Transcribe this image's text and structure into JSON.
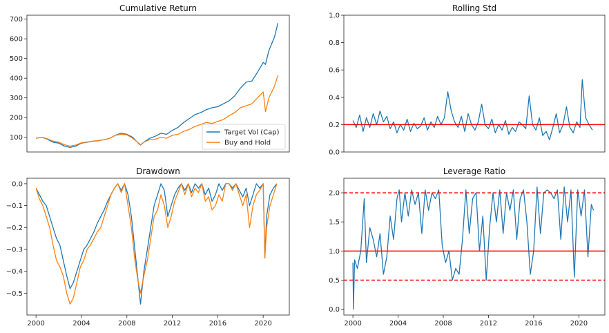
{
  "colors": {
    "target_vol": "#1f77b4",
    "buy_hold": "#ff7f0e",
    "reference": "#ff0000"
  },
  "chart_data": [
    {
      "id": "cumulative",
      "type": "line",
      "title": "Cumulative Return",
      "xlabel": "",
      "ylabel": "",
      "xlim": [
        1999.2,
        2022.3
      ],
      "ylim": [
        25,
        720
      ],
      "yticks": [
        100,
        200,
        300,
        400,
        500,
        600,
        700
      ],
      "show_xticks": false,
      "grid": false,
      "legend": "lower-right",
      "series": [
        {
          "name": "Target Vol (Cap)",
          "color": "#1f77b4",
          "x": [
            2000.0,
            2000.5,
            2001.0,
            2001.5,
            2002.0,
            2002.5,
            2003.0,
            2003.5,
            2004.0,
            2004.5,
            2005.0,
            2005.5,
            2006.0,
            2006.5,
            2007.0,
            2007.5,
            2008.0,
            2008.5,
            2009.0,
            2009.2,
            2009.5,
            2010.0,
            2010.5,
            2011.0,
            2011.5,
            2012.0,
            2012.5,
            2013.0,
            2013.5,
            2014.0,
            2014.5,
            2015.0,
            2015.5,
            2016.0,
            2016.5,
            2017.0,
            2017.5,
            2018.0,
            2018.5,
            2019.0,
            2019.5,
            2020.0,
            2020.2,
            2020.5,
            2021.0,
            2021.3
          ],
          "y": [
            95,
            100,
            90,
            75,
            70,
            55,
            48,
            55,
            70,
            75,
            80,
            82,
            88,
            95,
            110,
            120,
            115,
            100,
            70,
            60,
            75,
            95,
            105,
            120,
            115,
            135,
            150,
            175,
            195,
            215,
            225,
            240,
            250,
            255,
            270,
            285,
            310,
            350,
            380,
            385,
            430,
            480,
            470,
            540,
            610,
            680
          ]
        },
        {
          "name": "Buy and Hold",
          "color": "#ff7f0e",
          "x": [
            2000.0,
            2000.5,
            2001.0,
            2001.5,
            2002.0,
            2002.5,
            2003.0,
            2003.5,
            2004.0,
            2004.5,
            2005.0,
            2005.5,
            2006.0,
            2006.5,
            2007.0,
            2007.5,
            2008.0,
            2008.5,
            2009.0,
            2009.2,
            2009.5,
            2010.0,
            2010.5,
            2011.0,
            2011.5,
            2012.0,
            2012.5,
            2013.0,
            2013.5,
            2014.0,
            2014.5,
            2015.0,
            2015.5,
            2016.0,
            2016.5,
            2017.0,
            2017.5,
            2018.0,
            2018.5,
            2019.0,
            2019.5,
            2020.0,
            2020.2,
            2020.5,
            2021.0,
            2021.3
          ],
          "y": [
            95,
            100,
            92,
            80,
            75,
            62,
            55,
            60,
            72,
            76,
            80,
            83,
            88,
            95,
            110,
            115,
            112,
            95,
            72,
            62,
            75,
            88,
            90,
            100,
            95,
            110,
            115,
            130,
            140,
            155,
            165,
            175,
            170,
            180,
            190,
            210,
            225,
            250,
            260,
            270,
            300,
            330,
            230,
            300,
            360,
            415
          ]
        }
      ]
    },
    {
      "id": "rolling_std",
      "type": "line",
      "title": "Rolling Std",
      "xlabel": "",
      "ylabel": "",
      "xlim": [
        1999.2,
        2022.3
      ],
      "ylim": [
        0,
        1.0
      ],
      "yticks": [
        0.0,
        0.2,
        0.4,
        0.6,
        0.8,
        1.0
      ],
      "show_xticks": false,
      "grid": false,
      "hlines": [
        {
          "y": 0.2,
          "color": "#ff0000",
          "style": "solid"
        }
      ],
      "series": [
        {
          "name": "",
          "color": "#1f77b4",
          "x": [
            2000.0,
            2000.3,
            2000.6,
            2000.9,
            2001.2,
            2001.5,
            2001.8,
            2002.1,
            2002.4,
            2002.7,
            2003.0,
            2003.3,
            2003.6,
            2003.9,
            2004.2,
            2004.5,
            2004.8,
            2005.1,
            2005.4,
            2005.7,
            2006.0,
            2006.3,
            2006.6,
            2006.9,
            2007.2,
            2007.5,
            2007.8,
            2008.1,
            2008.4,
            2008.7,
            2009.0,
            2009.3,
            2009.6,
            2009.9,
            2010.2,
            2010.5,
            2010.8,
            2011.1,
            2011.4,
            2011.7,
            2012.0,
            2012.3,
            2012.6,
            2012.9,
            2013.2,
            2013.5,
            2013.8,
            2014.1,
            2014.4,
            2014.7,
            2015.0,
            2015.3,
            2015.6,
            2015.9,
            2016.2,
            2016.5,
            2016.8,
            2017.1,
            2017.4,
            2017.7,
            2018.0,
            2018.3,
            2018.6,
            2018.9,
            2019.2,
            2019.5,
            2019.8,
            2020.1,
            2020.3,
            2020.6,
            2020.9,
            2021.2
          ],
          "y": [
            0.23,
            0.18,
            0.27,
            0.15,
            0.25,
            0.18,
            0.28,
            0.2,
            0.3,
            0.22,
            0.26,
            0.17,
            0.22,
            0.14,
            0.2,
            0.16,
            0.24,
            0.15,
            0.21,
            0.17,
            0.19,
            0.25,
            0.16,
            0.22,
            0.18,
            0.26,
            0.2,
            0.25,
            0.44,
            0.3,
            0.22,
            0.18,
            0.26,
            0.15,
            0.28,
            0.2,
            0.16,
            0.22,
            0.35,
            0.2,
            0.17,
            0.24,
            0.14,
            0.2,
            0.16,
            0.23,
            0.13,
            0.18,
            0.15,
            0.22,
            0.2,
            0.17,
            0.41,
            0.2,
            0.16,
            0.25,
            0.12,
            0.15,
            0.09,
            0.18,
            0.28,
            0.14,
            0.2,
            0.33,
            0.18,
            0.14,
            0.22,
            0.18,
            0.53,
            0.25,
            0.2,
            0.16
          ]
        }
      ]
    },
    {
      "id": "drawdown",
      "type": "line",
      "title": "Drawdown",
      "xlabel": "",
      "ylabel": "",
      "xlim": [
        1999.2,
        2022.3
      ],
      "ylim": [
        -0.6,
        0.025
      ],
      "yticks": [
        0.0,
        -0.1,
        -0.2,
        -0.3,
        -0.4,
        -0.5
      ],
      "ytick_labels": [
        "0.0",
        "−0.1",
        "−0.2",
        "−0.3",
        "−0.4",
        "−0.5"
      ],
      "xticks": [
        2000,
        2004,
        2008,
        2012,
        2016,
        2020
      ],
      "show_xticks": true,
      "grid": false,
      "series": [
        {
          "name": "Target Vol (Cap)",
          "color": "#1f77b4",
          "x": [
            2000.0,
            2000.3,
            2000.6,
            2000.9,
            2001.2,
            2001.5,
            2001.8,
            2002.1,
            2002.4,
            2002.7,
            2003.0,
            2003.3,
            2003.6,
            2003.9,
            2004.2,
            2004.5,
            2004.8,
            2005.1,
            2005.4,
            2005.7,
            2006.0,
            2006.3,
            2006.6,
            2006.9,
            2007.2,
            2007.5,
            2007.8,
            2008.1,
            2008.4,
            2008.7,
            2009.0,
            2009.2,
            2009.5,
            2009.8,
            2010.1,
            2010.4,
            2010.7,
            2011.0,
            2011.3,
            2011.6,
            2011.9,
            2012.2,
            2012.5,
            2012.8,
            2013.1,
            2013.4,
            2013.7,
            2014.0,
            2014.3,
            2014.6,
            2014.9,
            2015.2,
            2015.5,
            2015.8,
            2016.1,
            2016.4,
            2016.7,
            2017.0,
            2017.3,
            2017.6,
            2017.9,
            2018.2,
            2018.5,
            2018.8,
            2019.1,
            2019.4,
            2019.7,
            2020.0,
            2020.15,
            2020.3,
            2020.6,
            2020.9,
            2021.2
          ],
          "y": [
            -0.02,
            -0.05,
            -0.08,
            -0.1,
            -0.15,
            -0.2,
            -0.25,
            -0.28,
            -0.35,
            -0.42,
            -0.48,
            -0.45,
            -0.4,
            -0.35,
            -0.3,
            -0.28,
            -0.25,
            -0.22,
            -0.18,
            -0.15,
            -0.12,
            -0.08,
            -0.05,
            -0.02,
            0.0,
            -0.03,
            0.0,
            -0.05,
            -0.15,
            -0.3,
            -0.45,
            -0.55,
            -0.4,
            -0.3,
            -0.2,
            -0.1,
            -0.05,
            0.0,
            -0.03,
            -0.15,
            -0.1,
            -0.05,
            -0.02,
            0.0,
            -0.03,
            0.0,
            -0.04,
            0.0,
            -0.02,
            0.0,
            -0.05,
            -0.02,
            -0.08,
            -0.05,
            0.0,
            -0.03,
            0.0,
            0.0,
            -0.02,
            0.0,
            -0.03,
            -0.06,
            -0.02,
            -0.1,
            -0.05,
            0.0,
            -0.02,
            0.0,
            -0.34,
            -0.15,
            -0.05,
            -0.02,
            0.0
          ]
        },
        {
          "name": "Buy and Hold",
          "color": "#ff7f0e",
          "x": [
            2000.0,
            2000.3,
            2000.6,
            2000.9,
            2001.2,
            2001.5,
            2001.8,
            2002.1,
            2002.4,
            2002.7,
            2003.0,
            2003.3,
            2003.6,
            2003.9,
            2004.2,
            2004.5,
            2004.8,
            2005.1,
            2005.4,
            2005.7,
            2006.0,
            2006.3,
            2006.6,
            2006.9,
            2007.2,
            2007.5,
            2007.8,
            2008.1,
            2008.4,
            2008.7,
            2009.0,
            2009.2,
            2009.5,
            2009.8,
            2010.1,
            2010.4,
            2010.7,
            2011.0,
            2011.3,
            2011.6,
            2011.9,
            2012.2,
            2012.5,
            2012.8,
            2013.1,
            2013.4,
            2013.7,
            2014.0,
            2014.3,
            2014.6,
            2014.9,
            2015.2,
            2015.5,
            2015.8,
            2016.1,
            2016.4,
            2016.7,
            2017.0,
            2017.3,
            2017.6,
            2017.9,
            2018.2,
            2018.5,
            2018.8,
            2019.1,
            2019.4,
            2019.7,
            2020.0,
            2020.15,
            2020.3,
            2020.6,
            2020.9,
            2021.2
          ],
          "y": [
            -0.02,
            -0.07,
            -0.1,
            -0.15,
            -0.2,
            -0.28,
            -0.35,
            -0.38,
            -0.42,
            -0.5,
            -0.55,
            -0.52,
            -0.45,
            -0.38,
            -0.35,
            -0.3,
            -0.28,
            -0.25,
            -0.22,
            -0.2,
            -0.15,
            -0.1,
            -0.05,
            -0.02,
            0.0,
            -0.04,
            0.0,
            -0.1,
            -0.2,
            -0.35,
            -0.45,
            -0.5,
            -0.42,
            -0.35,
            -0.25,
            -0.15,
            -0.12,
            -0.05,
            -0.1,
            -0.2,
            -0.15,
            -0.08,
            -0.04,
            0.0,
            -0.05,
            0.0,
            -0.06,
            -0.02,
            -0.04,
            0.0,
            -0.08,
            -0.06,
            -0.12,
            -0.1,
            -0.05,
            -0.08,
            0.0,
            0.0,
            -0.03,
            0.0,
            -0.05,
            -0.1,
            -0.05,
            -0.2,
            -0.1,
            -0.05,
            -0.03,
            0.0,
            -0.34,
            -0.2,
            -0.1,
            -0.05,
            0.0
          ]
        }
      ]
    },
    {
      "id": "leverage",
      "type": "line",
      "title": "Leverage Ratio",
      "xlabel": "",
      "ylabel": "",
      "xlim": [
        1999.2,
        2022.3
      ],
      "ylim": [
        -0.1,
        2.25
      ],
      "yticks": [
        0.0,
        0.5,
        1.0,
        1.5,
        2.0
      ],
      "xticks": [
        2000,
        2004,
        2008,
        2012,
        2016,
        2020
      ],
      "show_xticks": true,
      "grid": false,
      "hlines": [
        {
          "y": 2.0,
          "color": "#ff0000",
          "style": "dashed"
        },
        {
          "y": 1.0,
          "color": "#ff0000",
          "style": "solid"
        },
        {
          "y": 0.5,
          "color": "#ff0000",
          "style": "dashed"
        }
      ],
      "series": [
        {
          "name": "",
          "color": "#1f77b4",
          "x": [
            2000.0,
            2000.05,
            2000.15,
            2000.4,
            2000.7,
            2001.0,
            2001.2,
            2001.5,
            2001.8,
            2002.1,
            2002.4,
            2002.7,
            2003.0,
            2003.3,
            2003.6,
            2003.9,
            2004.1,
            2004.3,
            2004.6,
            2004.9,
            2005.2,
            2005.5,
            2005.8,
            2006.1,
            2006.4,
            2006.7,
            2007.0,
            2007.3,
            2007.6,
            2007.9,
            2008.2,
            2008.5,
            2008.8,
            2009.1,
            2009.4,
            2009.7,
            2010.0,
            2010.3,
            2010.6,
            2010.9,
            2011.2,
            2011.5,
            2011.8,
            2012.1,
            2012.4,
            2012.7,
            2013.0,
            2013.3,
            2013.6,
            2013.9,
            2014.2,
            2014.5,
            2014.8,
            2015.1,
            2015.4,
            2015.7,
            2016.0,
            2016.3,
            2016.6,
            2016.9,
            2017.2,
            2017.5,
            2017.8,
            2018.1,
            2018.4,
            2018.7,
            2019.0,
            2019.3,
            2019.6,
            2019.9,
            2020.2,
            2020.5,
            2020.8,
            2021.1,
            2021.3
          ],
          "y": [
            0.8,
            0.0,
            0.85,
            0.7,
            1.0,
            1.9,
            0.8,
            1.4,
            1.2,
            0.9,
            1.3,
            0.6,
            0.9,
            1.6,
            1.2,
            1.9,
            2.05,
            1.5,
            2.0,
            1.6,
            2.05,
            1.8,
            2.0,
            1.3,
            2.05,
            1.7,
            2.0,
            1.9,
            2.05,
            1.1,
            0.8,
            1.0,
            0.5,
            0.7,
            0.6,
            1.2,
            2.05,
            1.3,
            1.9,
            2.0,
            1.0,
            1.6,
            0.5,
            1.4,
            2.0,
            1.5,
            2.05,
            1.3,
            2.0,
            1.7,
            2.05,
            1.2,
            1.9,
            2.05,
            1.5,
            0.6,
            1.0,
            2.1,
            1.3,
            2.0,
            2.05,
            2.0,
            1.9,
            2.05,
            1.2,
            2.1,
            1.5,
            2.05,
            0.55,
            2.05,
            1.6,
            2.05,
            0.9,
            1.8,
            1.7
          ]
        }
      ]
    }
  ]
}
